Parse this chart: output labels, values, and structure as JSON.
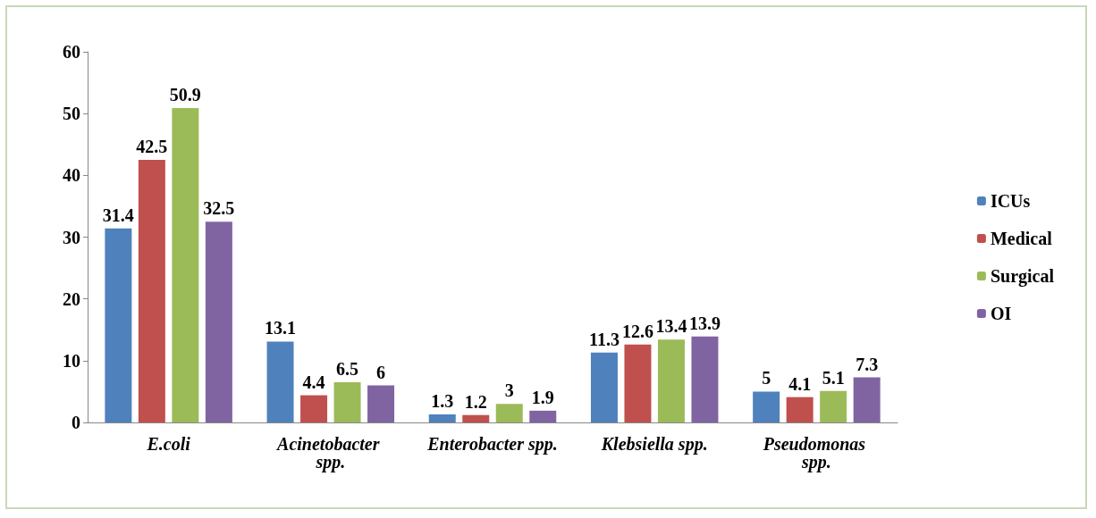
{
  "chart_data": {
    "type": "bar",
    "categories": [
      "E.coli",
      "Acinetobacter spp.",
      "Enterobacter spp.",
      "Klebsiella spp.",
      "Pseudomonas spp."
    ],
    "series": [
      {
        "name": "ICUs",
        "color": "#4f81bd",
        "values": [
          31.4,
          13.1,
          1.3,
          11.3,
          5
        ]
      },
      {
        "name": "Medical",
        "color": "#c0504d",
        "values": [
          42.5,
          4.4,
          1.2,
          12.6,
          4.1
        ]
      },
      {
        "name": "Surgical",
        "color": "#9bbb59",
        "values": [
          50.9,
          6.5,
          3,
          13.4,
          5.1
        ]
      },
      {
        "name": "OI",
        "color": "#8064a2",
        "values": [
          32.5,
          6,
          1.9,
          13.9,
          7.3
        ]
      }
    ],
    "ylim": [
      0,
      60
    ],
    "yticks": [
      0,
      10,
      20,
      30,
      40,
      50,
      60
    ],
    "grid": false,
    "legend": "right",
    "data_labels": true
  }
}
